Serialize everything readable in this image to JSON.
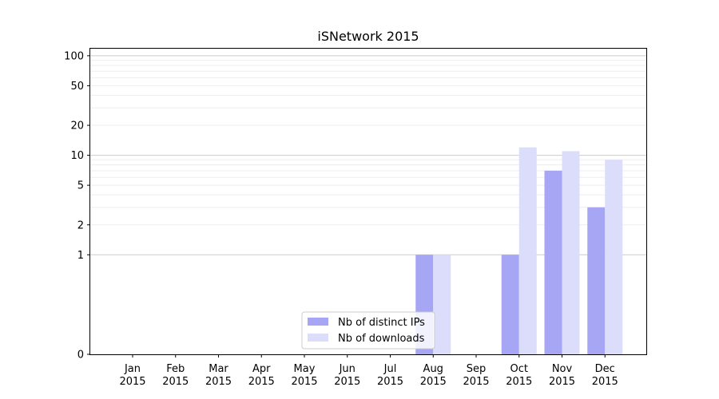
{
  "chart_data": {
    "type": "bar",
    "title": "iSNetwork 2015",
    "xlabel": "",
    "ylabel": "",
    "y_scale": "symlog",
    "ylim": [
      0,
      120
    ],
    "grid": "horizontal",
    "legend_position": "lower-center",
    "categories": [
      {
        "month": "Jan",
        "year": "2015"
      },
      {
        "month": "Feb",
        "year": "2015"
      },
      {
        "month": "Mar",
        "year": "2015"
      },
      {
        "month": "Apr",
        "year": "2015"
      },
      {
        "month": "May",
        "year": "2015"
      },
      {
        "month": "Jun",
        "year": "2015"
      },
      {
        "month": "Jul",
        "year": "2015"
      },
      {
        "month": "Aug",
        "year": "2015"
      },
      {
        "month": "Sep",
        "year": "2015"
      },
      {
        "month": "Oct",
        "year": "2015"
      },
      {
        "month": "Nov",
        "year": "2015"
      },
      {
        "month": "Dec",
        "year": "2015"
      }
    ],
    "y_ticks": [
      {
        "value": 0,
        "label": "0"
      },
      {
        "value": 1,
        "label": "1"
      },
      {
        "value": 2,
        "label": "2"
      },
      {
        "value": 5,
        "label": "5"
      },
      {
        "value": 10,
        "label": "10"
      },
      {
        "value": 20,
        "label": "20"
      },
      {
        "value": 50,
        "label": "50"
      },
      {
        "value": 100,
        "label": "100"
      }
    ],
    "series": [
      {
        "name": "Nb of distinct IPs",
        "color": "#a6a6f5",
        "values": [
          0,
          0,
          0,
          0,
          0,
          0,
          0,
          1,
          0,
          1,
          7,
          3
        ]
      },
      {
        "name": "Nb of downloads",
        "color": "#dcdcfb",
        "values": [
          0,
          0,
          0,
          0,
          0,
          0,
          0,
          1,
          0,
          12,
          11,
          9
        ]
      }
    ]
  }
}
